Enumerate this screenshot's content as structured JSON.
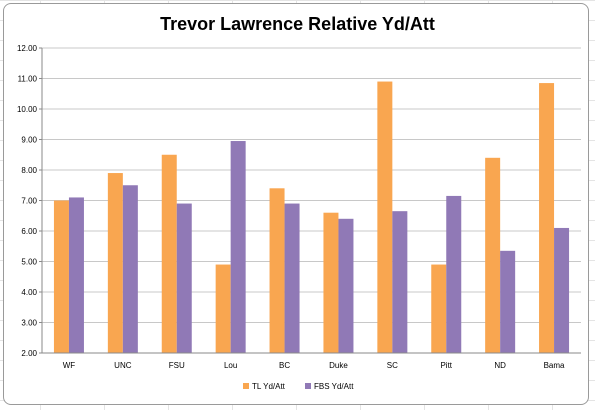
{
  "chart_data": {
    "type": "bar",
    "title": "Trevor Lawrence Relative Yd/Att",
    "xlabel": "",
    "ylabel": "",
    "categories": [
      "WF",
      "UNC",
      "FSU",
      "Lou",
      "BC",
      "Duke",
      "SC",
      "Pitt",
      "ND",
      "Bama"
    ],
    "series": [
      {
        "name": "TL Yd/Att",
        "color": "#F9A650",
        "values": [
          7.0,
          7.9,
          8.5,
          4.9,
          7.4,
          6.6,
          10.9,
          4.9,
          8.4,
          10.85
        ]
      },
      {
        "name": "FBS Yd/Att",
        "color": "#9079B6",
        "values": [
          7.1,
          7.5,
          6.9,
          8.95,
          6.9,
          6.4,
          6.65,
          7.15,
          5.35,
          6.1
        ]
      }
    ],
    "ylim": [
      2.0,
      12.0
    ],
    "yticks": [
      "2.00",
      "3.00",
      "4.00",
      "5.00",
      "6.00",
      "7.00",
      "8.00",
      "9.00",
      "10.00",
      "11.00",
      "12.00"
    ],
    "grid": true,
    "legend_position": "bottom"
  }
}
